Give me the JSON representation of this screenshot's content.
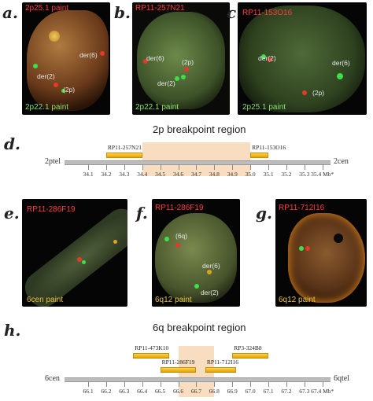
{
  "panels": {
    "a": {
      "letter": "a.",
      "top_label": "2p25.1 paint",
      "bottom_label": "2p22.1 paint",
      "labels": [
        "der(6)",
        "der(2)",
        "(2p)"
      ]
    },
    "b": {
      "letter": "b.",
      "top_label": "RP11-257N21",
      "bottom_label": "2p22.1 paint",
      "labels": [
        "der(6)",
        "(2p)",
        "der(2)"
      ]
    },
    "c": {
      "letter": "c.",
      "top_label": "RP11-153O16",
      "bottom_label": "2p25.1 paint",
      "labels": [
        "der(2)",
        "der(6)",
        "(2p)"
      ]
    },
    "e": {
      "letter": "e.",
      "top_label": "RP11-286F19",
      "bottom_label": "6cen paint"
    },
    "f": {
      "letter": "f.",
      "top_label": "RP11-286F19",
      "bottom_label": "6q12 paint",
      "labels": [
        "(6q)",
        "der(6)",
        "der(2)"
      ]
    },
    "g": {
      "letter": "g.",
      "top_label": "RP11-712I16",
      "bottom_label": "6q12 paint"
    }
  },
  "map_d": {
    "letter": "d.",
    "title": "2p breakpoint region",
    "left_end": "2ptel",
    "right_end": "2cen",
    "ticks": [
      "34.1",
      "34.2",
      "34.3",
      "34.4",
      "34.5",
      "34.6",
      "34.7",
      "34.8",
      "34.9",
      "35.0",
      "35.1",
      "35.2",
      "35.3",
      "35.4 Mb*"
    ],
    "clones": [
      {
        "name": "RP11-257N21",
        "start": 34.2,
        "end": 34.4
      },
      {
        "name": "RP11-153O16",
        "start": 35.0,
        "end": 35.1
      }
    ],
    "region": {
      "start": 34.4,
      "end": 35.0
    }
  },
  "map_h": {
    "letter": "h.",
    "title": "6q breakpoint region",
    "left_end": "6cen",
    "right_end": "6qtel",
    "ticks": [
      "66.1",
      "66.2",
      "66.3",
      "66.4",
      "66.5",
      "66.6",
      "66.7",
      "66.8",
      "66.9",
      "67.0",
      "67.1",
      "67.2",
      "67.3",
      "67.4 Mb*"
    ],
    "clones": [
      {
        "name": "RP11-473K10",
        "start": 66.35,
        "end": 66.55,
        "row": 0
      },
      {
        "name": "RP3-324B8",
        "start": 66.9,
        "end": 67.1,
        "row": 0
      },
      {
        "name": "RP11-286F19",
        "start": 66.5,
        "end": 66.7,
        "row": 1
      },
      {
        "name": "RP11-712I16",
        "start": 66.75,
        "end": 66.92,
        "row": 1
      }
    ],
    "region": {
      "start": 66.6,
      "end": 66.8
    }
  }
}
